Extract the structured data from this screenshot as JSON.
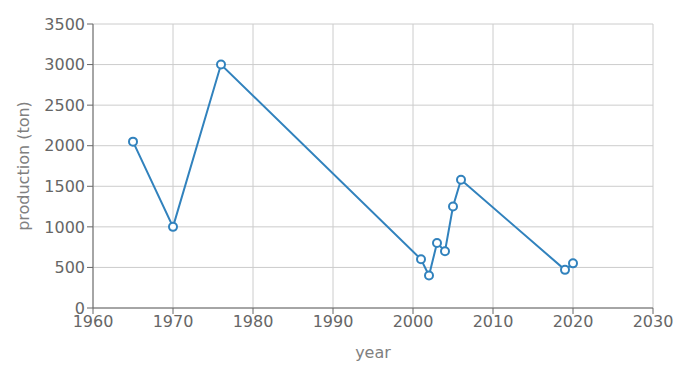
{
  "chart_data": {
    "type": "line",
    "x": [
      1965,
      1970,
      1976,
      2001,
      2002,
      2003,
      2004,
      2005,
      2006,
      2019,
      2020
    ],
    "values": [
      2050,
      1000,
      3000,
      600,
      400,
      800,
      700,
      1250,
      1580,
      470,
      550
    ],
    "xlabel": "year",
    "ylabel": "production (ton)",
    "xlim": [
      1960,
      2030
    ],
    "ylim": [
      0,
      3500
    ],
    "xticks": [
      1960,
      1970,
      1980,
      1990,
      2000,
      2010,
      2020,
      2030
    ],
    "yticks": [
      0,
      500,
      1000,
      1500,
      2000,
      2500,
      3000,
      3500
    ],
    "grid": true,
    "marker": "circle"
  }
}
